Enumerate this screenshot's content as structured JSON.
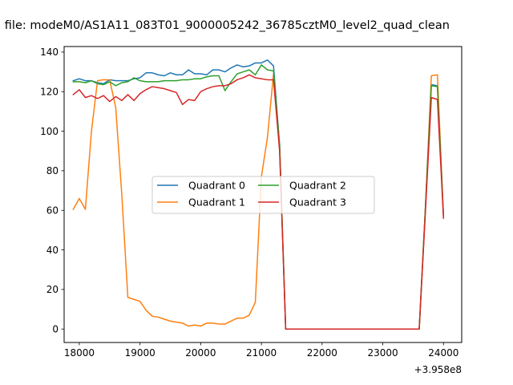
{
  "chart_data": {
    "type": "line",
    "title": "n file: modeM0/AS1A11_083T01_9000005242_36785cztM0_level2_quad_clean",
    "xlabel": "",
    "ylabel": "",
    "x_offset_label": "+3.958e8",
    "xlim": [
      17750,
      24300
    ],
    "ylim": [
      -6.8,
      142.8
    ],
    "xticks": [
      18000,
      19000,
      20000,
      21000,
      22000,
      23000,
      24000
    ],
    "yticks": [
      0,
      20,
      40,
      60,
      80,
      100,
      120,
      140
    ],
    "grid": false,
    "legend": {
      "placement": "center",
      "columns": 2
    },
    "series": [
      {
        "name": "Quadrant 0",
        "color": "#1f77b4",
        "x": [
          17900,
          18000,
          18100,
          18200,
          18300,
          18400,
          18500,
          18600,
          18700,
          18800,
          18900,
          19000,
          19100,
          19200,
          19300,
          19400,
          19500,
          19600,
          19700,
          19800,
          19900,
          20000,
          20100,
          20200,
          20300,
          20400,
          20500,
          20600,
          20700,
          20800,
          20900,
          21000,
          21100,
          21200,
          21300,
          21400,
          21500,
          21600,
          21700,
          21800,
          21900,
          22000,
          22100,
          22200,
          22300,
          22400,
          22500,
          22600,
          22700,
          22800,
          22900,
          23000,
          23100,
          23200,
          23300,
          23400,
          23500,
          23600,
          23700,
          23800,
          23900,
          24000
        ],
        "y": [
          125.5,
          126.5,
          125.5,
          125.5,
          124.5,
          124,
          126,
          125.5,
          125.5,
          125.5,
          126.5,
          127,
          129.5,
          129.5,
          128.5,
          128,
          129.5,
          128.5,
          128.5,
          131,
          129,
          129,
          128.5,
          131,
          131,
          130,
          132,
          133.5,
          132.5,
          133,
          134.5,
          134.5,
          136,
          133,
          93,
          0,
          0,
          0,
          0,
          0,
          0,
          0,
          0,
          0,
          0,
          0,
          0,
          0,
          0,
          0,
          0,
          0,
          0,
          0,
          0,
          0,
          0,
          0,
          60,
          123.5,
          123,
          57
        ]
      },
      {
        "name": "Quadrant 1",
        "color": "#ff7f0e",
        "x": [
          17900,
          18000,
          18100,
          18200,
          18300,
          18400,
          18500,
          18600,
          18700,
          18800,
          18900,
          19000,
          19100,
          19200,
          19300,
          19400,
          19500,
          19600,
          19700,
          19800,
          19900,
          20000,
          20100,
          20200,
          20300,
          20400,
          20500,
          20600,
          20700,
          20800,
          20900,
          21000,
          21100,
          21200,
          21300,
          21400,
          21500,
          21600,
          21700,
          21800,
          21900,
          22000,
          22100,
          22200,
          22300,
          22400,
          22500,
          22600,
          22700,
          22800,
          22900,
          23000,
          23100,
          23200,
          23300,
          23400,
          23500,
          23600,
          23700,
          23800,
          23900,
          24000
        ],
        "y": [
          60.5,
          66,
          60.5,
          100,
          125.5,
          126,
          126,
          112,
          68,
          16,
          15,
          14,
          9.5,
          6.5,
          6,
          5,
          4,
          3.5,
          3,
          1.5,
          2,
          1.5,
          3,
          3,
          2.5,
          2.5,
          4,
          5.5,
          5.5,
          7,
          13.5,
          77,
          97,
          129,
          93,
          0,
          0,
          0,
          0,
          0,
          0,
          0,
          0,
          0,
          0,
          0,
          0,
          0,
          0,
          0,
          0,
          0,
          0,
          0,
          0,
          0,
          0,
          0,
          60,
          128,
          128.5,
          57
        ]
      },
      {
        "name": "Quadrant 2",
        "color": "#2ca02c",
        "x": [
          17900,
          18000,
          18100,
          18200,
          18300,
          18400,
          18500,
          18600,
          18700,
          18800,
          18900,
          19000,
          19100,
          19200,
          19300,
          19400,
          19500,
          19600,
          19700,
          19800,
          19900,
          20000,
          20100,
          20200,
          20300,
          20400,
          20500,
          20600,
          20700,
          20800,
          20900,
          21000,
          21100,
          21200,
          21300,
          21400,
          21500,
          21600,
          21700,
          21800,
          21900,
          22000,
          22100,
          22200,
          22300,
          22400,
          22500,
          22600,
          22700,
          22800,
          22900,
          23000,
          23100,
          23200,
          23300,
          23400,
          23500,
          23600,
          23700,
          23800,
          23900,
          24000
        ],
        "y": [
          125,
          125,
          124.5,
          125.5,
          124,
          123.5,
          125,
          123,
          124.5,
          125,
          127,
          125.5,
          125,
          125,
          125,
          125.5,
          125.5,
          125.5,
          126,
          126,
          126.5,
          126.5,
          127.5,
          128,
          128,
          120.5,
          125,
          129,
          130,
          131,
          128.5,
          133.5,
          131,
          130.5,
          93,
          0,
          0,
          0,
          0,
          0,
          0,
          0,
          0,
          0,
          0,
          0,
          0,
          0,
          0,
          0,
          0,
          0,
          0,
          0,
          0,
          0,
          0,
          0,
          60,
          123,
          122.5,
          57
        ]
      },
      {
        "name": "Quadrant 3",
        "color": "#d62728",
        "x": [
          17900,
          18000,
          18100,
          18200,
          18300,
          18400,
          18500,
          18600,
          18700,
          18800,
          18900,
          19000,
          19100,
          19200,
          19300,
          19400,
          19500,
          19600,
          19700,
          19800,
          19900,
          20000,
          20100,
          20200,
          20300,
          20400,
          20500,
          20600,
          20700,
          20800,
          20900,
          21000,
          21100,
          21200,
          21300,
          21400,
          21500,
          21600,
          21700,
          21800,
          21900,
          22000,
          22100,
          22200,
          22300,
          22400,
          22500,
          22600,
          22700,
          22800,
          22900,
          23000,
          23100,
          23200,
          23300,
          23400,
          23500,
          23600,
          23700,
          23800,
          23900,
          24000
        ],
        "y": [
          118.5,
          121,
          117,
          118,
          116.5,
          118,
          115,
          117.5,
          115.5,
          118.5,
          115.5,
          119,
          121,
          122.5,
          122,
          121.5,
          120.5,
          119.5,
          113.5,
          116,
          115.5,
          120,
          121.5,
          122.5,
          123,
          123,
          124,
          126,
          127,
          128.5,
          127,
          126.5,
          126,
          126,
          90,
          0,
          0,
          0,
          0,
          0,
          0,
          0,
          0,
          0,
          0,
          0,
          0,
          0,
          0,
          0,
          0,
          0,
          0,
          0,
          0,
          0,
          0,
          0,
          58,
          117,
          116,
          56
        ]
      }
    ]
  }
}
